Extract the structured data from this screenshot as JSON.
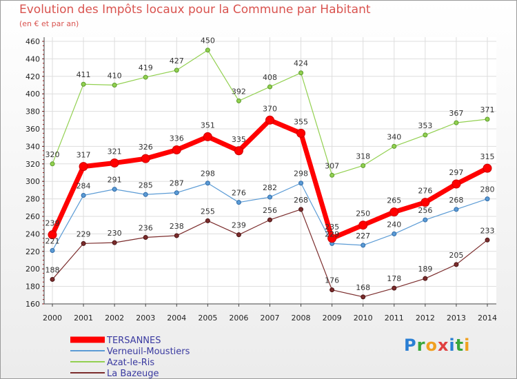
{
  "chart_data": {
    "type": "line",
    "title": "Evolution des Impôts locaux pour la Commune par Habitant",
    "subtitle": "(en € et par an)",
    "x": [
      "2000",
      "2001",
      "2002",
      "2003",
      "2004",
      "2005",
      "2006",
      "2007",
      "2008",
      "2009",
      "2010",
      "2011",
      "2012",
      "2013",
      "2014"
    ],
    "ylim": [
      160,
      460
    ],
    "yticks": [
      160,
      180,
      200,
      220,
      240,
      260,
      280,
      300,
      320,
      340,
      360,
      380,
      400,
      420,
      440,
      460
    ],
    "grid": true,
    "legend_position": "bottom-left",
    "series": [
      {
        "name": "TERSANNES",
        "color": "#ff0000",
        "values": [
          239,
          317,
          321,
          326,
          336,
          351,
          335,
          370,
          355,
          235,
          250,
          265,
          276,
          297,
          315
        ]
      },
      {
        "name": "Verneuil-Moustiers",
        "color": "#5b9bd5",
        "values": [
          221,
          284,
          291,
          285,
          287,
          298,
          276,
          282,
          298,
          229,
          227,
          240,
          256,
          268,
          280
        ]
      },
      {
        "name": "Azat-le-Ris",
        "color": "#92d050",
        "values": [
          320,
          411,
          410,
          419,
          427,
          450,
          392,
          408,
          424,
          307,
          318,
          340,
          353,
          367,
          371
        ]
      },
      {
        "name": "La Bazeuge",
        "color": "#7b2c2c",
        "values": [
          188,
          229,
          230,
          236,
          238,
          255,
          239,
          256,
          268,
          176,
          168,
          178,
          189,
          205,
          233
        ]
      }
    ]
  },
  "logo_text": "Proxiti"
}
